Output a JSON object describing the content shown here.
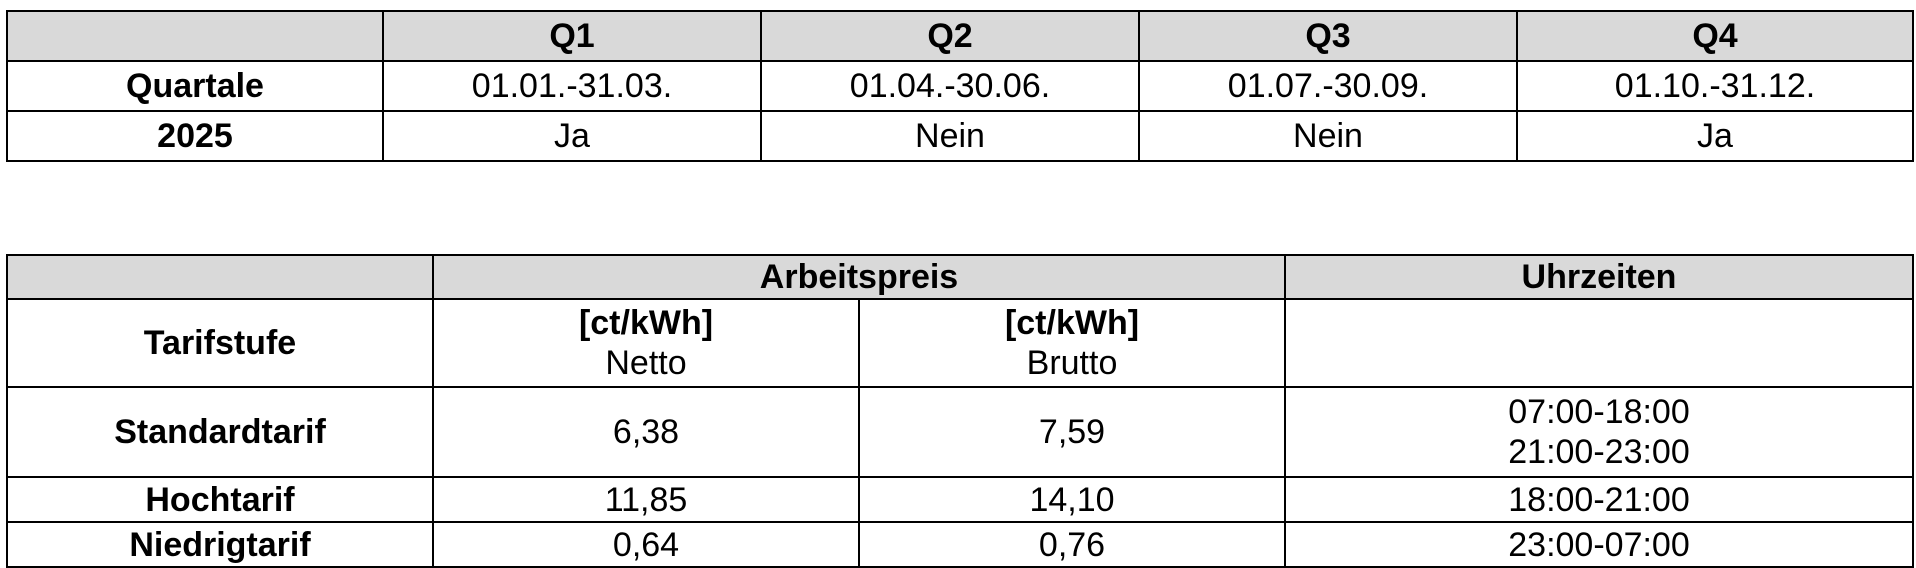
{
  "quarters_table": {
    "header": [
      "",
      "Q1",
      "Q2",
      "Q3",
      "Q4"
    ],
    "rows": [
      {
        "label": "Quartale",
        "cells": [
          "01.01.-31.03.",
          "01.04.-30.06.",
          "01.07.-30.09.",
          "01.10.-31.12."
        ]
      },
      {
        "label": "2025",
        "cells": [
          "Ja",
          "Nein",
          "Nein",
          "Ja"
        ]
      }
    ]
  },
  "tariff_table": {
    "header": {
      "empty": "",
      "arbeitspreis": "Arbeitspreis",
      "uhrzeiten": "Uhrzeiten"
    },
    "subheader": {
      "tarifstufe": "Tarifstufe",
      "netto_unit": "[ct/kWh]",
      "netto_label": "Netto",
      "brutto_unit": "[ct/kWh]",
      "brutto_label": "Brutto",
      "uhrzeiten_blank": ""
    },
    "rows": [
      {
        "name": "Standardtarif",
        "netto": "6,38",
        "brutto": "7,59",
        "times": [
          "07:00-18:00",
          "21:00-23:00"
        ]
      },
      {
        "name": "Hochtarif",
        "netto": "11,85",
        "brutto": "14,10",
        "times": [
          "18:00-21:00"
        ]
      },
      {
        "name": "Niedrigtarif",
        "netto": "0,64",
        "brutto": "0,76",
        "times": [
          "23:00-07:00"
        ]
      }
    ]
  }
}
